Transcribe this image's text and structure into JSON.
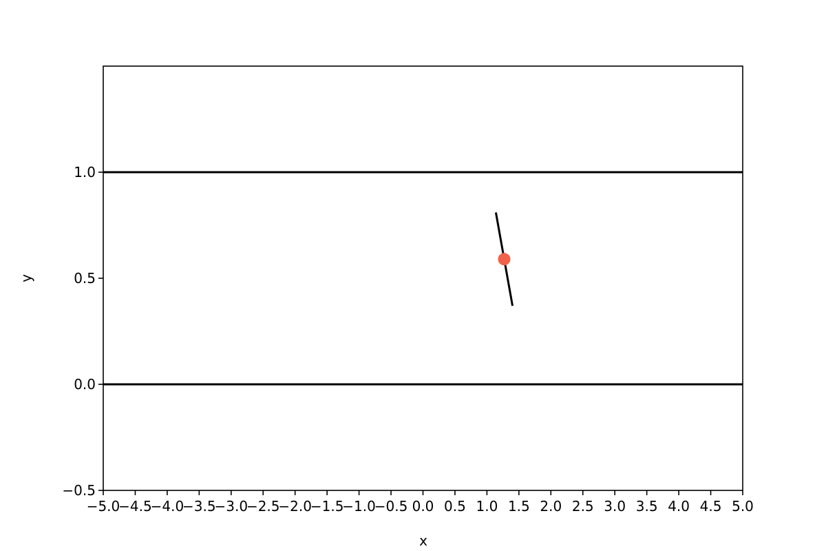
{
  "chart_data": {
    "type": "scatter",
    "title": "",
    "xlabel": "x",
    "ylabel": "y",
    "xlim": [
      -5.0,
      5.0
    ],
    "ylim": [
      -0.5,
      1.5
    ],
    "x_ticks": [
      -5.0,
      -4.5,
      -4.0,
      -3.5,
      -3.0,
      -2.5,
      -2.0,
      -1.5,
      -1.0,
      -0.5,
      0.0,
      0.5,
      1.0,
      1.5,
      2.0,
      2.5,
      3.0,
      3.5,
      4.0,
      4.5,
      5.0
    ],
    "x_tick_labels": [
      "−5.0",
      "−4.5",
      "−4.0",
      "−3.5",
      "−3.0",
      "−2.5",
      "−2.0",
      "−1.5",
      "−1.0",
      "−0.5",
      "0.0",
      "0.5",
      "1.0",
      "1.5",
      "2.0",
      "2.5",
      "3.0",
      "3.5",
      "4.0",
      "4.5",
      "5.0"
    ],
    "y_ticks": [
      -0.5,
      0.0,
      0.5,
      1.0
    ],
    "y_tick_labels": [
      "−0.5",
      "0.0",
      "0.5",
      "1.0"
    ],
    "grid": false,
    "horizontal_lines": [
      {
        "y": 0.0,
        "color": "#000000"
      },
      {
        "y": 1.0,
        "color": "#000000"
      }
    ],
    "segments": [
      {
        "x": [
          1.14,
          1.4
        ],
        "y": [
          0.81,
          0.37
        ],
        "color": "#000000"
      }
    ],
    "points": [
      {
        "x": 1.27,
        "y": 0.59,
        "color": "#f0624a"
      }
    ]
  }
}
